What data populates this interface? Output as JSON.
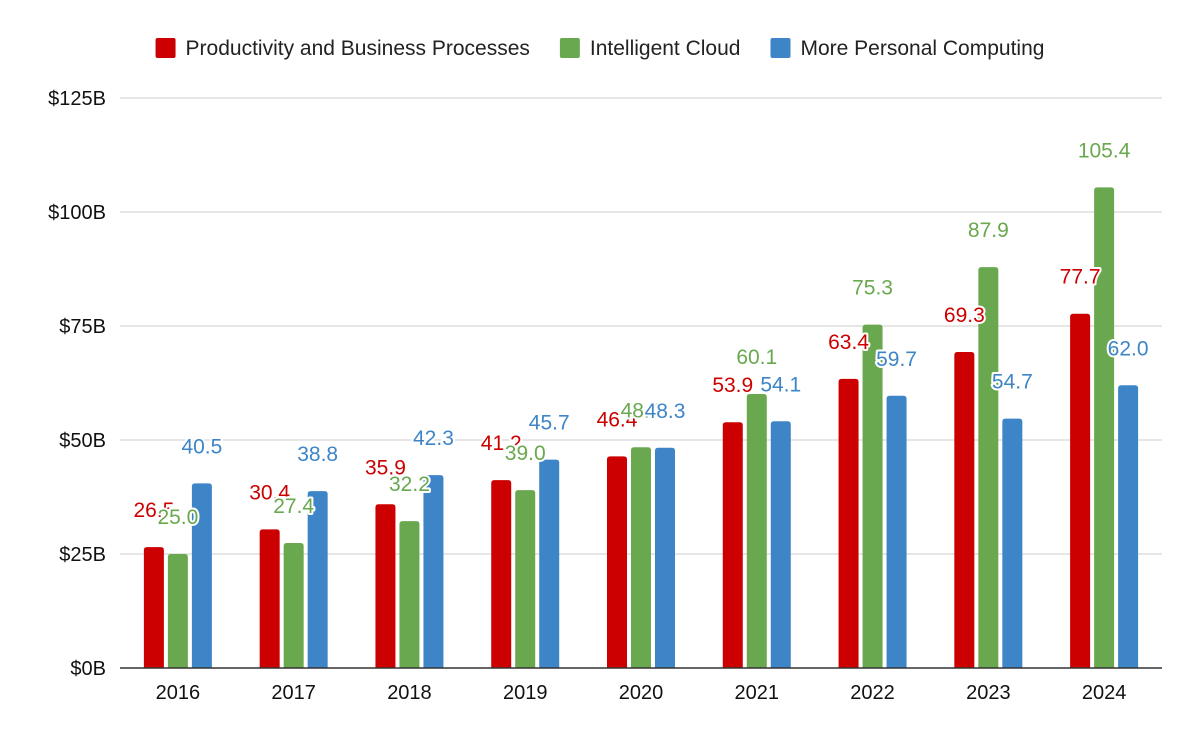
{
  "chart_data": {
    "type": "bar",
    "categories": [
      "2016",
      "2017",
      "2018",
      "2019",
      "2020",
      "2021",
      "2022",
      "2023",
      "2024"
    ],
    "series": [
      {
        "name": "Productivity and Business Processes",
        "color": "#cc0000",
        "values": [
          26.5,
          30.4,
          35.9,
          41.2,
          46.4,
          53.9,
          63.4,
          69.3,
          77.7
        ]
      },
      {
        "name": "Intelligent Cloud",
        "color": "#6aa84f",
        "values": [
          25.0,
          27.4,
          32.2,
          39.0,
          48.4,
          60.1,
          75.3,
          87.9,
          105.4
        ]
      },
      {
        "name": "More Personal Computing",
        "color": "#3d85c6",
        "values": [
          40.5,
          38.8,
          42.3,
          45.7,
          48.3,
          54.1,
          59.7,
          54.7,
          62.0
        ]
      }
    ],
    "y_ticks": [
      "$0B",
      "$25B",
      "$50B",
      "$75B",
      "$100B",
      "$125B"
    ],
    "ylim": [
      0,
      125
    ],
    "legend_position": "top",
    "grid": true
  }
}
